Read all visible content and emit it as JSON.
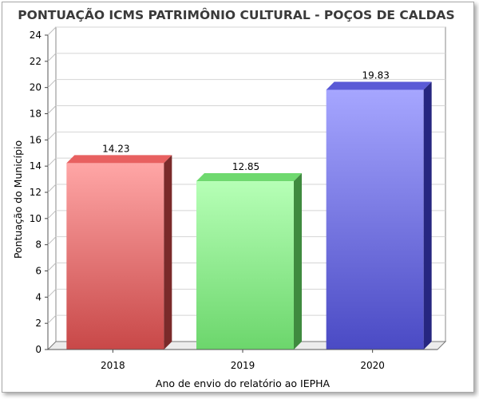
{
  "chart_data": {
    "type": "bar",
    "title": "PONTUAÇÃO ICMS PATRIMÔNIO CULTURAL - POÇOS DE CALDAS",
    "xlabel": "Ano de envio do relatório ao IEPHA",
    "ylabel": "Pontuação do Município",
    "categories": [
      "2018",
      "2019",
      "2020"
    ],
    "values": [
      14.23,
      12.85,
      19.83
    ],
    "data_labels": [
      "14.23",
      "12.85",
      "19.83"
    ],
    "yticks": [
      "0",
      "2",
      "4",
      "6",
      "8",
      "10",
      "12",
      "14",
      "16",
      "18",
      "20",
      "22",
      "24"
    ],
    "ylim": [
      0,
      24
    ],
    "grid": true,
    "legend": "none",
    "colors": {
      "2018": "#e56f6f",
      "2019": "#8ee88e",
      "2020": "#6f6fe0"
    }
  }
}
